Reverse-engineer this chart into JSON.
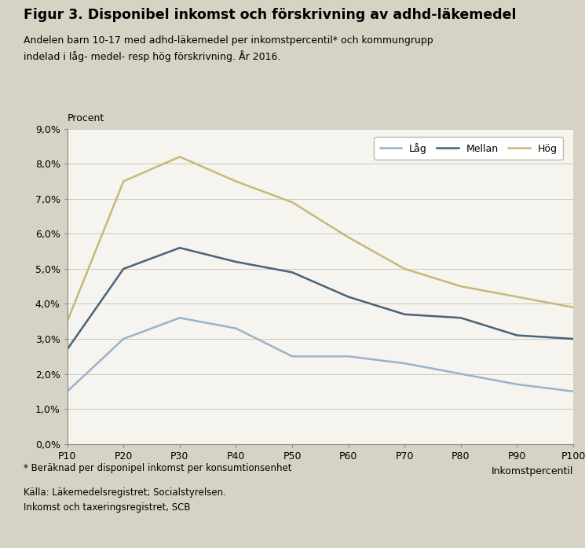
{
  "title": "Figur 3. Disponibel inkomst och förskrivning av adhd-läkemedel",
  "subtitle_line1": "Andelen barn 10-17 med adhd-läkemedel per inkomstpercentil* och kommungrupp",
  "subtitle_line2": "indelad i låg- medel- resp hög förskrivning. År 2016.",
  "ylabel": "Procent",
  "xlabel": "Inkomstpercentil",
  "x_labels": [
    "P10",
    "P20",
    "P30",
    "P40",
    "P50",
    "P60",
    "P70",
    "P80",
    "P90",
    "P100"
  ],
  "x_values": [
    10,
    20,
    30,
    40,
    50,
    60,
    70,
    80,
    90,
    100
  ],
  "lag": [
    0.015,
    0.03,
    0.036,
    0.033,
    0.025,
    0.025,
    0.023,
    0.02,
    0.017,
    0.015
  ],
  "mellan": [
    0.027,
    0.05,
    0.056,
    0.052,
    0.049,
    0.042,
    0.037,
    0.036,
    0.031,
    0.03
  ],
  "hog": [
    0.035,
    0.075,
    0.082,
    0.075,
    0.069,
    0.059,
    0.05,
    0.045,
    0.042,
    0.039
  ],
  "lag_color": "#9ab3c9",
  "mellan_color": "#4a6278",
  "hog_color": "#c8b87a",
  "lag_label": "Låg",
  "mellan_label": "Mellan",
  "hog_label": "Hög",
  "ylim": [
    0.0,
    0.09
  ],
  "yticks": [
    0.0,
    0.01,
    0.02,
    0.03,
    0.04,
    0.05,
    0.06,
    0.07,
    0.08,
    0.09
  ],
  "background_outer": "#d6d2c4",
  "background_plot": "#f5f4ee",
  "footnote1": "* Beräknad per disponipel inkomst per konsumtionsenhet",
  "footnote2": "Källa: Läkemedelsregistret; Socialstyrelsen.",
  "footnote3": "Inkomst och taxeringsregistret, SCB",
  "line_width": 1.8
}
